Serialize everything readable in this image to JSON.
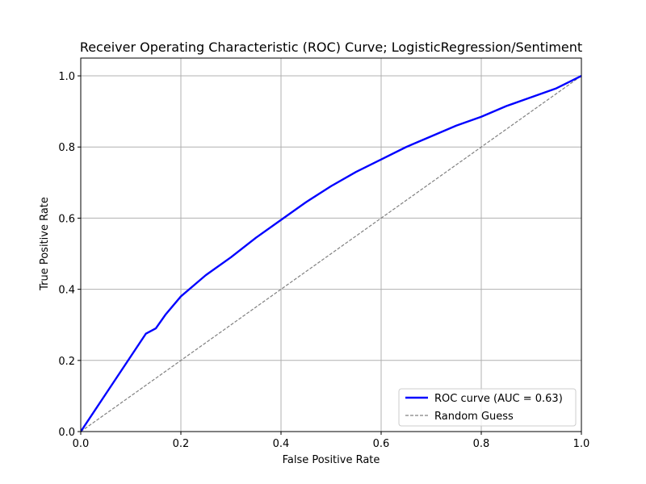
{
  "chart_data": {
    "type": "line",
    "title": "Receiver Operating Characteristic (ROC) Curve; LogisticRegression/Sentiment",
    "xlabel": "False Positive Rate",
    "ylabel": "True Positive Rate",
    "xlim": [
      0,
      1
    ],
    "ylim": [
      0,
      1.05
    ],
    "xticks": [
      0.0,
      0.2,
      0.4,
      0.6,
      0.8,
      1.0
    ],
    "yticks": [
      0.0,
      0.2,
      0.4,
      0.6,
      0.8,
      1.0
    ],
    "xtick_labels": [
      "0.0",
      "0.2",
      "0.4",
      "0.6",
      "0.8",
      "1.0"
    ],
    "ytick_labels": [
      "0.0",
      "0.2",
      "0.4",
      "0.6",
      "0.8",
      "1.0"
    ],
    "grid": true,
    "legend_position": "lower-right",
    "series": [
      {
        "name": "ROC curve (AUC = 0.63)",
        "color": "#0000ff",
        "style": "solid",
        "x": [
          0.0,
          0.13,
          0.15,
          0.17,
          0.2,
          0.25,
          0.3,
          0.35,
          0.4,
          0.45,
          0.5,
          0.55,
          0.6,
          0.65,
          0.7,
          0.75,
          0.8,
          0.85,
          0.9,
          0.95,
          1.0
        ],
        "y": [
          0.0,
          0.275,
          0.29,
          0.33,
          0.38,
          0.44,
          0.49,
          0.545,
          0.595,
          0.645,
          0.69,
          0.73,
          0.765,
          0.8,
          0.83,
          0.86,
          0.885,
          0.915,
          0.94,
          0.965,
          1.0
        ]
      },
      {
        "name": "Random Guess",
        "color": "#808080",
        "style": "dashed",
        "x": [
          0.0,
          1.0
        ],
        "y": [
          0.0,
          1.0
        ]
      }
    ]
  }
}
